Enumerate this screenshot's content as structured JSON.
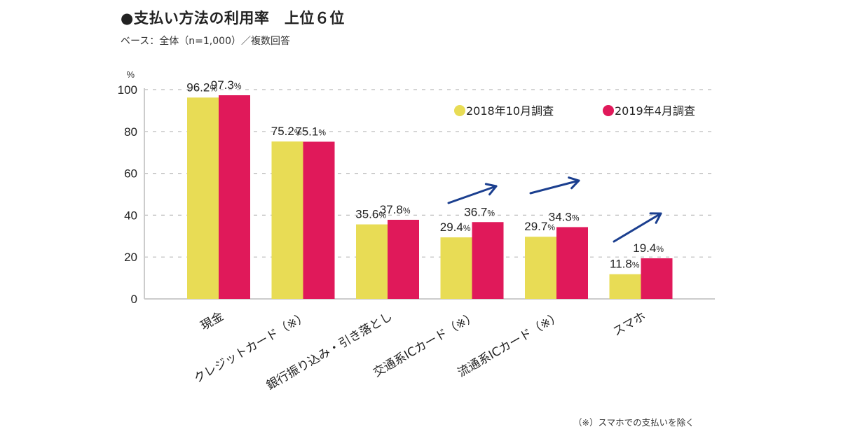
{
  "header": {
    "title": "●支払い方法の利用率　上位６位",
    "subtitle": "ベース：全体（n=1,000）／複数回答"
  },
  "footnote": "（※）スマホでの支払いを除く",
  "colors": {
    "series_2018": "#e8dc55",
    "series_2019": "#e0195a",
    "arrow": "#1b3f8f",
    "grid": "#bbbbbb",
    "axis": "#cccccc"
  },
  "chart_data": {
    "type": "bar",
    "title": "支払い方法の利用率　上位６位",
    "xlabel": "",
    "ylabel": "%",
    "ylim": [
      0,
      100
    ],
    "yticks": [
      0,
      20,
      40,
      60,
      80,
      100
    ],
    "grid": true,
    "legend_position": "top-right",
    "categories": [
      "現金",
      "クレジットカード（※）",
      "銀行振り込み・引き落とし",
      "交通系ICカード（※）",
      "流通系ICカード（※）",
      "スマホ"
    ],
    "series": [
      {
        "name": "2018年10月調査",
        "values": [
          96.2,
          75.2,
          35.6,
          29.4,
          29.7,
          11.8
        ]
      },
      {
        "name": "2019年4月調査",
        "values": [
          97.3,
          75.1,
          37.8,
          36.7,
          34.3,
          19.4
        ]
      }
    ],
    "value_suffix": "%",
    "annotations": [
      {
        "type": "increase-arrow",
        "category": "交通系ICカード（※）"
      },
      {
        "type": "increase-arrow",
        "category": "流通系ICカード（※）"
      },
      {
        "type": "increase-arrow",
        "category": "スマホ"
      }
    ]
  }
}
